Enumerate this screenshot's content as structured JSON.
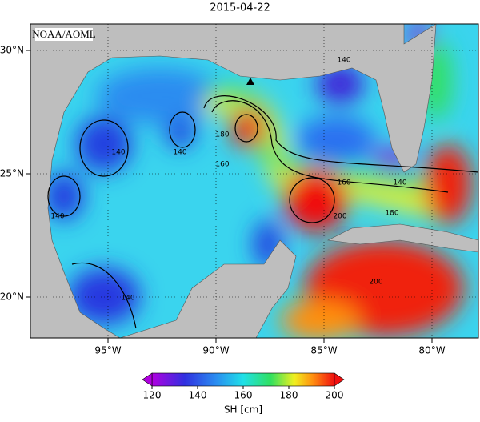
{
  "title": "2015-04-22",
  "watermark": "NOAA/AOML",
  "map": {
    "lon_ticks": [
      {
        "value": -95,
        "label": "95°W"
      },
      {
        "value": -90,
        "label": "90°W"
      },
      {
        "value": -85,
        "label": "85°W"
      },
      {
        "value": -80,
        "label": "80°W"
      }
    ],
    "lat_ticks": [
      {
        "value": 30,
        "label": "30°N"
      },
      {
        "value": 25,
        "label": "25°N"
      },
      {
        "value": 20,
        "label": "20°N"
      }
    ],
    "contour_labels": [
      "140",
      "140",
      "140",
      "140",
      "180",
      "160",
      "160",
      "140",
      "180",
      "200",
      "200",
      "140"
    ]
  },
  "colorbar": {
    "label": "SH [cm]",
    "lim": [
      120,
      200
    ],
    "ticks": [
      120,
      140,
      160,
      180,
      200
    ]
  }
}
